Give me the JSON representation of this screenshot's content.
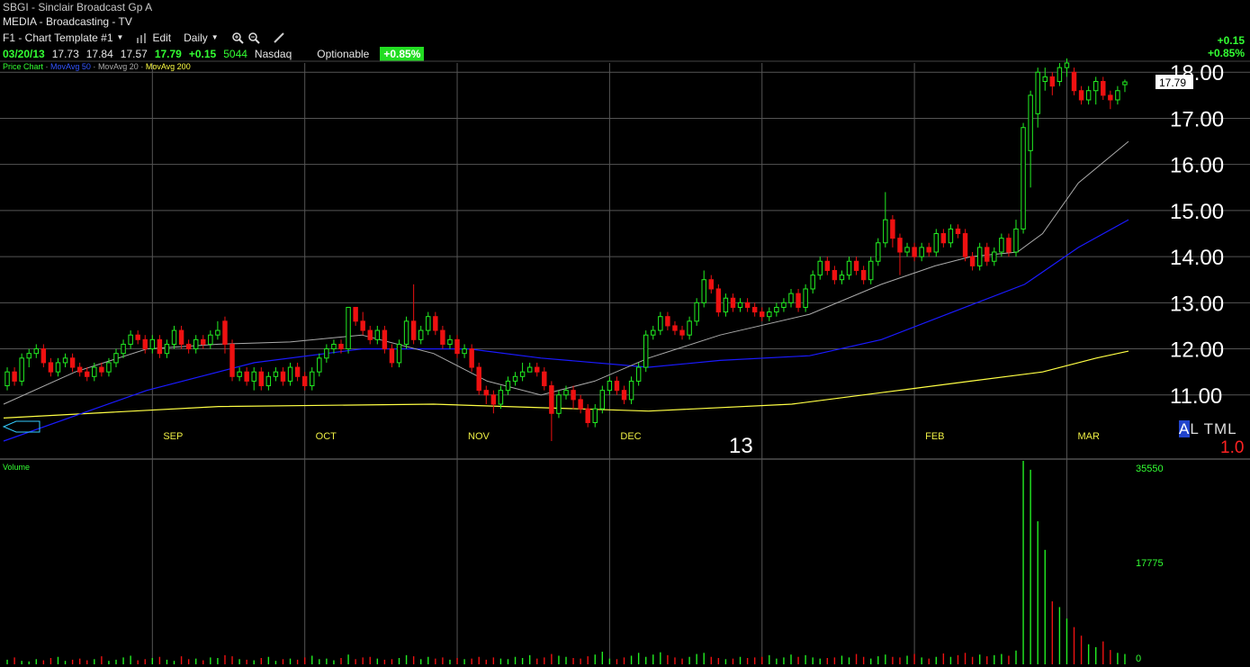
{
  "header": {
    "ticker_line": "SBGI - Sinclair Broadcast Gp A",
    "industry": "MEDIA - Broadcasting - TV",
    "template": "F1 - Chart Template #1",
    "edit_label": "Edit",
    "period": "Daily",
    "change_abs": "+0.15",
    "change_pct": "+0.85%"
  },
  "quote": {
    "date": "03/20/13",
    "open": "17.73",
    "high": "17.84",
    "low": "17.57",
    "close": "17.79",
    "change": "+0.15",
    "volume": "5044",
    "exchange": "Nasdaq",
    "optionable": "Optionable",
    "pct_badge": "+0.85%"
  },
  "studies": {
    "price": "Price Chart",
    "ma50": "MovAvg 50",
    "ma20": "MovAvg 20",
    "ma200": "MovAvg 200",
    "sep": "·"
  },
  "bottom_right": {
    "a": "A",
    "rest": "L TML",
    "scale": "1.0"
  },
  "volume_label": "Volume",
  "colors": {
    "up": "#22ee22",
    "down": "#ee1111",
    "ma20": "#aaaaaa",
    "ma50": "#1a1aff",
    "ma200": "#ffff44",
    "grid": "#555555"
  },
  "chart_data": {
    "type": "candlestick",
    "ylim": [
      10.0,
      18.2
    ],
    "yticks": [
      "18.00",
      "17.00",
      "16.00",
      "15.00",
      "14.00",
      "13.00",
      "12.00",
      "11.00"
    ],
    "last_price_label": "17.79",
    "months": [
      "SEP",
      "OCT",
      "NOV",
      "DEC",
      "13",
      "FEB",
      "MAR"
    ],
    "volume_ticks": [
      "35550",
      "17775",
      "0"
    ],
    "volume_max": 35550,
    "candles": [
      [
        11.2,
        11.5,
        11.6,
        11.1
      ],
      [
        11.5,
        11.3,
        11.6,
        11.2
      ],
      [
        11.3,
        11.8,
        11.9,
        11.2
      ],
      [
        11.8,
        11.9,
        12.0,
        11.6
      ],
      [
        11.9,
        12.0,
        12.1,
        11.8
      ],
      [
        12.0,
        11.7,
        12.1,
        11.6
      ],
      [
        11.7,
        11.5,
        11.8,
        11.4
      ],
      [
        11.5,
        11.7,
        11.8,
        11.4
      ],
      [
        11.7,
        11.8,
        11.9,
        11.6
      ],
      [
        11.8,
        11.6,
        11.9,
        11.5
      ],
      [
        11.6,
        11.5,
        11.7,
        11.4
      ],
      [
        11.5,
        11.4,
        11.6,
        11.3
      ],
      [
        11.4,
        11.6,
        11.7,
        11.3
      ],
      [
        11.6,
        11.5,
        11.7,
        11.4
      ],
      [
        11.5,
        11.7,
        11.8,
        11.4
      ],
      [
        11.7,
        11.9,
        12.0,
        11.6
      ],
      [
        11.9,
        12.1,
        12.2,
        11.8
      ],
      [
        12.1,
        12.3,
        12.4,
        12.0
      ],
      [
        12.3,
        12.2,
        12.4,
        12.1
      ],
      [
        12.2,
        12.0,
        12.3,
        11.9
      ],
      [
        12.0,
        12.2,
        12.3,
        11.9
      ],
      [
        12.2,
        11.9,
        12.3,
        11.8
      ],
      [
        11.9,
        12.1,
        12.2,
        11.8
      ],
      [
        12.1,
        12.4,
        12.5,
        12.0
      ],
      [
        12.4,
        12.1,
        12.5,
        12.0
      ],
      [
        12.1,
        12.0,
        12.2,
        11.9
      ],
      [
        12.0,
        12.2,
        12.3,
        11.9
      ],
      [
        12.2,
        12.1,
        12.3,
        12.0
      ],
      [
        12.1,
        12.3,
        12.4,
        12.0
      ],
      [
        12.3,
        12.4,
        12.6,
        12.2
      ],
      [
        12.6,
        12.1,
        12.7,
        11.9
      ],
      [
        12.1,
        11.4,
        12.2,
        11.3
      ],
      [
        11.4,
        11.5,
        11.6,
        11.3
      ],
      [
        11.5,
        11.3,
        11.6,
        11.2
      ],
      [
        11.3,
        11.5,
        11.6,
        11.1
      ],
      [
        11.5,
        11.2,
        11.6,
        11.1
      ],
      [
        11.2,
        11.4,
        11.5,
        11.1
      ],
      [
        11.4,
        11.5,
        11.6,
        11.3
      ],
      [
        11.5,
        11.3,
        11.6,
        11.2
      ],
      [
        11.3,
        11.6,
        11.7,
        11.2
      ],
      [
        11.6,
        11.4,
        11.7,
        11.3
      ],
      [
        11.4,
        11.2,
        11.5,
        11.1
      ],
      [
        11.2,
        11.5,
        11.6,
        11.1
      ],
      [
        11.5,
        11.8,
        11.9,
        11.4
      ],
      [
        11.8,
        12.0,
        12.1,
        11.7
      ],
      [
        12.0,
        12.1,
        12.2,
        11.9
      ],
      [
        12.1,
        12.0,
        12.2,
        11.9
      ],
      [
        12.0,
        12.9,
        12.9,
        11.9
      ],
      [
        12.9,
        12.6,
        12.9,
        12.5
      ],
      [
        12.6,
        12.4,
        12.8,
        12.3
      ],
      [
        12.4,
        12.2,
        12.5,
        12.1
      ],
      [
        12.2,
        12.4,
        12.5,
        12.1
      ],
      [
        12.4,
        12.0,
        12.5,
        11.9
      ],
      [
        12.0,
        11.7,
        12.1,
        11.6
      ],
      [
        11.7,
        12.1,
        12.2,
        11.6
      ],
      [
        12.1,
        12.6,
        12.7,
        12.0
      ],
      [
        12.6,
        12.2,
        13.4,
        12.1
      ],
      [
        12.2,
        12.4,
        12.5,
        12.1
      ],
      [
        12.4,
        12.7,
        12.8,
        12.3
      ],
      [
        12.7,
        12.4,
        12.8,
        12.3
      ],
      [
        12.4,
        12.1,
        12.5,
        12.0
      ],
      [
        12.1,
        12.2,
        12.3,
        12.0
      ],
      [
        12.2,
        11.9,
        12.3,
        11.8
      ],
      [
        11.9,
        12.0,
        12.1,
        11.8
      ],
      [
        12.0,
        11.6,
        12.1,
        11.5
      ],
      [
        11.6,
        11.1,
        11.7,
        11.0
      ],
      [
        11.1,
        11.0,
        11.2,
        10.8
      ],
      [
        11.0,
        10.8,
        11.1,
        10.6
      ],
      [
        10.8,
        11.1,
        11.2,
        10.7
      ],
      [
        11.1,
        11.3,
        11.4,
        11.0
      ],
      [
        11.3,
        11.4,
        11.5,
        11.2
      ],
      [
        11.4,
        11.5,
        11.7,
        11.3
      ],
      [
        11.5,
        11.6,
        11.7,
        11.5
      ],
      [
        11.6,
        11.5,
        11.7,
        11.4
      ],
      [
        11.5,
        11.2,
        11.6,
        11.1
      ],
      [
        11.2,
        10.6,
        11.3,
        10.0
      ],
      [
        10.6,
        11.0,
        11.1,
        10.5
      ],
      [
        11.0,
        11.1,
        11.2,
        10.9
      ],
      [
        11.1,
        10.9,
        11.2,
        10.7
      ],
      [
        10.9,
        10.7,
        11.0,
        10.6
      ],
      [
        10.7,
        10.4,
        10.8,
        10.3
      ],
      [
        10.4,
        10.7,
        10.8,
        10.3
      ],
      [
        10.7,
        11.1,
        11.2,
        10.6
      ],
      [
        11.1,
        11.3,
        11.4,
        11.0
      ],
      [
        11.3,
        11.1,
        11.4,
        11.0
      ],
      [
        11.1,
        10.9,
        11.2,
        10.8
      ],
      [
        10.9,
        11.3,
        11.4,
        10.8
      ],
      [
        11.3,
        11.6,
        11.7,
        11.2
      ],
      [
        11.6,
        12.3,
        12.4,
        11.5
      ],
      [
        12.3,
        12.4,
        12.5,
        12.2
      ],
      [
        12.4,
        12.7,
        12.8,
        12.3
      ],
      [
        12.7,
        12.5,
        12.8,
        12.4
      ],
      [
        12.5,
        12.4,
        12.6,
        12.3
      ],
      [
        12.4,
        12.3,
        12.5,
        12.2
      ],
      [
        12.3,
        12.6,
        12.7,
        12.2
      ],
      [
        12.6,
        13.0,
        13.1,
        12.5
      ],
      [
        13.0,
        13.5,
        13.7,
        12.9
      ],
      [
        13.5,
        13.3,
        13.6,
        13.2
      ],
      [
        13.3,
        12.8,
        13.4,
        12.7
      ],
      [
        12.8,
        13.1,
        13.2,
        12.7
      ],
      [
        13.1,
        12.9,
        13.2,
        12.8
      ],
      [
        12.9,
        13.0,
        13.1,
        12.8
      ],
      [
        13.0,
        12.9,
        13.1,
        12.8
      ],
      [
        12.9,
        12.8,
        13.0,
        12.7
      ],
      [
        12.8,
        12.7,
        12.9,
        12.6
      ],
      [
        12.7,
        12.8,
        12.9,
        12.6
      ],
      [
        12.8,
        12.9,
        13.0,
        12.7
      ],
      [
        12.9,
        13.0,
        13.1,
        12.8
      ],
      [
        13.0,
        13.2,
        13.3,
        12.9
      ],
      [
        13.2,
        12.9,
        13.3,
        12.8
      ],
      [
        12.9,
        13.3,
        13.4,
        12.8
      ],
      [
        13.3,
        13.6,
        13.7,
        13.2
      ],
      [
        13.6,
        13.9,
        14.0,
        13.5
      ],
      [
        13.9,
        13.7,
        14.0,
        13.6
      ],
      [
        13.7,
        13.5,
        13.8,
        13.4
      ],
      [
        13.5,
        13.6,
        13.7,
        13.4
      ],
      [
        13.6,
        13.9,
        14.0,
        13.5
      ],
      [
        13.9,
        13.7,
        14.0,
        13.6
      ],
      [
        13.7,
        13.5,
        13.8,
        13.4
      ],
      [
        13.5,
        13.9,
        14.0,
        13.4
      ],
      [
        13.9,
        14.3,
        14.4,
        13.8
      ],
      [
        14.3,
        14.8,
        15.4,
        14.2
      ],
      [
        14.8,
        14.4,
        14.9,
        14.2
      ],
      [
        14.4,
        14.1,
        14.5,
        13.6
      ],
      [
        14.1,
        14.2,
        14.3,
        14.0
      ],
      [
        14.2,
        14.0,
        14.3,
        13.9
      ],
      [
        14.0,
        14.2,
        14.3,
        13.9
      ],
      [
        14.2,
        14.1,
        14.3,
        14.0
      ],
      [
        14.1,
        14.5,
        14.6,
        14.0
      ],
      [
        14.5,
        14.3,
        14.6,
        14.2
      ],
      [
        14.3,
        14.6,
        14.7,
        14.2
      ],
      [
        14.6,
        14.5,
        14.7,
        14.4
      ],
      [
        14.5,
        14.0,
        14.6,
        13.9
      ],
      [
        14.0,
        13.8,
        14.1,
        13.7
      ],
      [
        13.8,
        14.2,
        14.3,
        13.7
      ],
      [
        14.2,
        13.9,
        14.3,
        13.8
      ],
      [
        13.9,
        14.1,
        14.2,
        13.8
      ],
      [
        14.1,
        14.4,
        14.5,
        14.0
      ],
      [
        14.4,
        14.1,
        14.5,
        14.0
      ],
      [
        14.1,
        14.6,
        14.8,
        14.0
      ],
      [
        14.6,
        16.8,
        16.9,
        14.5
      ],
      [
        16.3,
        17.5,
        17.6,
        15.5
      ],
      [
        17.1,
        18.0,
        18.1,
        16.8
      ],
      [
        17.8,
        17.9,
        18.1,
        17.6
      ],
      [
        17.9,
        17.7,
        18.0,
        17.5
      ],
      [
        17.8,
        18.1,
        18.2,
        17.7
      ],
      [
        18.1,
        18.2,
        18.3,
        17.9
      ],
      [
        18.0,
        17.6,
        18.1,
        17.5
      ],
      [
        17.6,
        17.4,
        17.7,
        17.3
      ],
      [
        17.4,
        17.6,
        17.7,
        17.3
      ],
      [
        17.6,
        17.8,
        17.9,
        17.3
      ],
      [
        17.8,
        17.5,
        17.9,
        17.4
      ],
      [
        17.5,
        17.4,
        17.6,
        17.2
      ],
      [
        17.4,
        17.6,
        17.7,
        17.3
      ],
      [
        17.73,
        17.79,
        17.84,
        17.57
      ]
    ],
    "ma20": [
      [
        0,
        10.8
      ],
      [
        20,
        11.5
      ],
      [
        40,
        12.0
      ],
      [
        60,
        12.1
      ],
      [
        80,
        12.15
      ],
      [
        100,
        12.3
      ],
      [
        120,
        11.9
      ],
      [
        135,
        11.3
      ],
      [
        150,
        11.0
      ],
      [
        165,
        11.3
      ],
      [
        180,
        11.8
      ],
      [
        200,
        12.3
      ],
      [
        225,
        12.75
      ],
      [
        245,
        13.4
      ],
      [
        260,
        13.8
      ],
      [
        270,
        14.0
      ],
      [
        283,
        14.1
      ],
      [
        290,
        14.5
      ],
      [
        300,
        15.6
      ],
      [
        314,
        16.5
      ]
    ],
    "ma50": [
      [
        0,
        10.0
      ],
      [
        40,
        11.1
      ],
      [
        70,
        11.7
      ],
      [
        100,
        12.0
      ],
      [
        130,
        12.0
      ],
      [
        150,
        11.8
      ],
      [
        180,
        11.6
      ],
      [
        200,
        11.75
      ],
      [
        225,
        11.85
      ],
      [
        245,
        12.2
      ],
      [
        265,
        12.8
      ],
      [
        285,
        13.4
      ],
      [
        300,
        14.2
      ],
      [
        314,
        14.8
      ]
    ],
    "ma200": [
      [
        0,
        10.5
      ],
      [
        60,
        10.75
      ],
      [
        120,
        10.8
      ],
      [
        180,
        10.65
      ],
      [
        220,
        10.8
      ],
      [
        245,
        11.05
      ],
      [
        270,
        11.3
      ],
      [
        290,
        11.5
      ],
      [
        305,
        11.8
      ],
      [
        314,
        11.95
      ]
    ],
    "volume": [
      800,
      1200,
      600,
      500,
      900,
      700,
      1100,
      1300,
      600,
      800,
      1000,
      700,
      900,
      1400,
      600,
      800,
      1200,
      1500,
      700,
      900,
      1100,
      1300,
      800,
      600,
      1400,
      900,
      1000,
      700,
      1200,
      1100,
      1600,
      1400,
      900,
      800,
      700,
      1100,
      1300,
      600,
      900,
      1000,
      800,
      1200,
      1500,
      900,
      1000,
      700,
      1100,
      1700,
      900,
      1200,
      1300,
      1000,
      800,
      900,
      1100,
      1600,
      1400,
      900,
      1300,
      1000,
      1200,
      800,
      1100,
      900,
      1000,
      1300,
      800,
      1200,
      1000,
      900,
      1300,
      1100,
      1600,
      1000,
      1200,
      1800,
      1500,
      1300,
      1100,
      1000,
      1400,
      1700,
      2200,
      1000,
      900,
      1200,
      1500,
      2000,
      1300,
      1700,
      2100,
      1600,
      1200,
      1000,
      1300,
      1800,
      2000,
      1300,
      1100,
      900,
      1000,
      1300,
      1100,
      1200,
      1300,
      1600,
      1000,
      1200,
      1700,
      1300,
      1600,
      1200,
      1000,
      1100,
      1200,
      1500,
      1200,
      1800,
      1300,
      1000,
      1400,
      1700,
      1300,
      1200,
      1500,
      1800,
      1200,
      1000,
      1300,
      1900,
      1300,
      1600,
      2000,
      1300,
      1700,
      1400,
      1600,
      1800,
      1500,
      2400,
      36000,
      34000,
      25000,
      20000,
      11000,
      10000,
      8000,
      6500,
      5000,
      3500,
      3000,
      4000,
      2500,
      2000,
      1800
    ]
  }
}
